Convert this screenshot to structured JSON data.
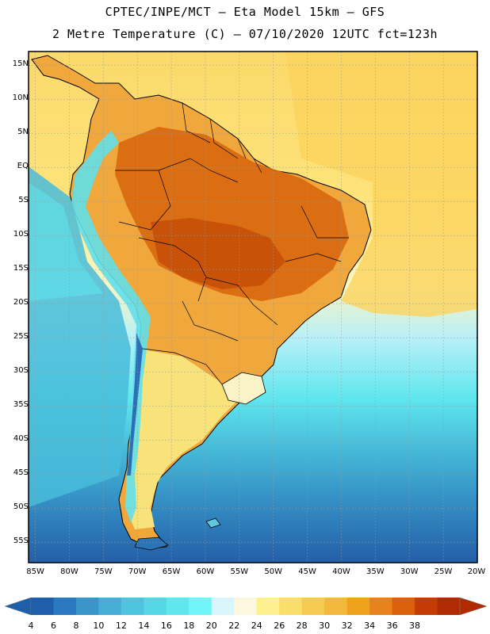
{
  "title": {
    "line1": "CPTEC/INPE/MCT –  Eta Model 15km – GFS",
    "line2": "2 Metre Temperature (C) – 07/10/2020 12UTC fct=123h"
  },
  "map": {
    "lat_labels": [
      "15N",
      "10N",
      "5N",
      "EQ",
      "5S",
      "10S",
      "15S",
      "20S",
      "25S",
      "30S",
      "35S",
      "40S",
      "45S",
      "50S",
      "55S"
    ],
    "lon_labels": [
      "85W",
      "80W",
      "75W",
      "70W",
      "65W",
      "60W",
      "55W",
      "50W",
      "45W",
      "40W",
      "35W",
      "30W",
      "25W",
      "20W"
    ],
    "variable": "2 Metre Temperature",
    "units": "C"
  },
  "colorbar": {
    "labels": [
      "4",
      "6",
      "8",
      "10",
      "12",
      "14",
      "16",
      "18",
      "20",
      "22",
      "24",
      "26",
      "28",
      "30",
      "32",
      "34",
      "36",
      "38"
    ],
    "colors": [
      "#1f5ea8",
      "#2a78bd",
      "#3a95c8",
      "#46aed6",
      "#4fc4de",
      "#55d7e6",
      "#5ee8ee",
      "#72f5f8",
      "#d8f6fb",
      "#fdf7e0",
      "#fdf08f",
      "#f9df6a",
      "#f5cc50",
      "#f2b93c",
      "#eea21e",
      "#e8821a",
      "#dc5f0c",
      "#c43c04",
      "#b02a02"
    ]
  }
}
